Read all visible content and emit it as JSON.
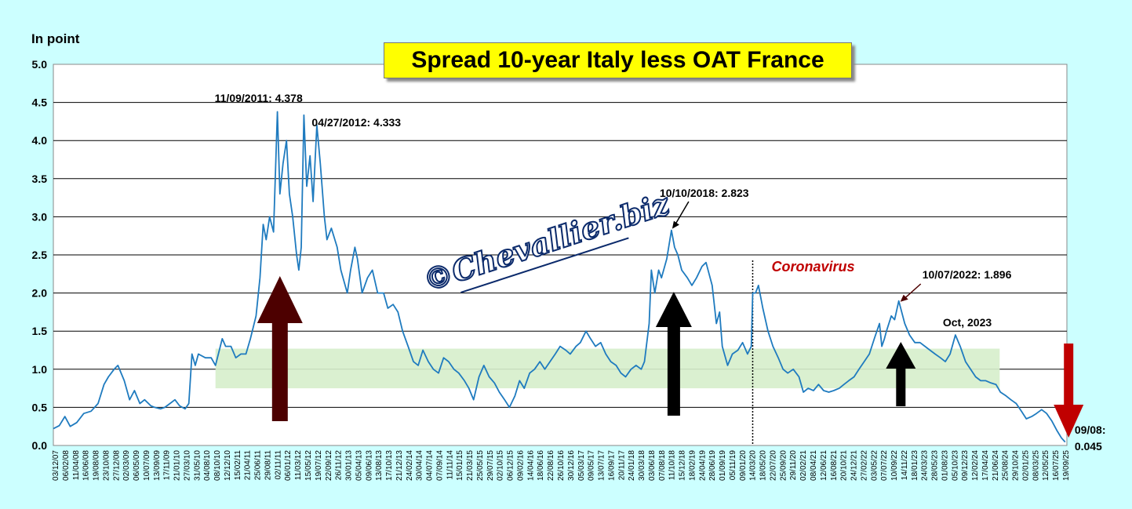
{
  "chart_data": {
    "type": "line",
    "title": "Spread 10-year Italy less OAT France",
    "ylabel": "In point",
    "ylim": [
      0,
      5
    ],
    "yticks": [
      "0.0",
      "0.5",
      "1.0",
      "1.5",
      "2.0",
      "2.5",
      "3.0",
      "3.5",
      "4.0",
      "4.5",
      "5.0"
    ],
    "grid": true,
    "x_tick_labels": [
      "03/12/07",
      "06/02/08",
      "11/04/08",
      "16/06/08",
      "19/08/08",
      "23/10/08",
      "27/12/08",
      "02/03/09",
      "06/05/09",
      "10/07/09",
      "13/09/09",
      "17/11/09",
      "21/01/10",
      "27/03/10",
      "31/05/10",
      "04/08/10",
      "08/10/10",
      "12/12/10",
      "15/02/11",
      "21/04/11",
      "25/06/11",
      "29/08/11",
      "02/11/11",
      "06/01/12",
      "11/03/12",
      "15/05/12",
      "19/07/12",
      "22/09/12",
      "26/11/12",
      "30/01/13",
      "05/04/13",
      "09/06/13",
      "13/08/13",
      "17/10/13",
      "21/12/13",
      "24/02/14",
      "30/04/14",
      "04/07/14",
      "07/09/14",
      "11/11/14",
      "15/01/15",
      "21/03/15",
      "25/05/15",
      "29/07/15",
      "02/10/15",
      "06/12/15",
      "09/02/16",
      "14/04/16",
      "18/06/16",
      "22/08/16",
      "26/10/16",
      "30/12/16",
      "05/03/17",
      "09/05/17",
      "13/07/17",
      "16/09/17",
      "20/11/17",
      "24/01/18",
      "30/03/18",
      "03/06/18",
      "07/08/18",
      "11/10/18",
      "15/12/18",
      "18/02/19",
      "24/04/19",
      "28/06/19",
      "01/09/19",
      "05/11/19",
      "09/01/20",
      "14/03/20",
      "18/05/20",
      "22/07/20",
      "25/09/20",
      "29/11/20",
      "02/02/21",
      "08/04/21",
      "12/06/21",
      "16/08/21",
      "20/10/21",
      "24/12/21",
      "27/02/22",
      "03/05/22",
      "07/07/22",
      "10/09/22",
      "14/11/22",
      "18/01/23",
      "24/03/23",
      "28/05/23",
      "01/08/23",
      "05/10/23",
      "09/12/23",
      "12/02/24",
      "17/04/24",
      "21/06/24",
      "25/08/24",
      "29/10/24",
      "02/01/25",
      "08/03/25",
      "12/05/25",
      "16/07/25",
      "19/09/25"
    ],
    "x_range": [
      "2007-12-03",
      "2025-09-19"
    ],
    "series": [
      {
        "color": "#1f7bbf",
        "points": [
          [
            "2007-12-03",
            0.22
          ],
          [
            "2008-01-10",
            0.26
          ],
          [
            "2008-02-15",
            0.38
          ],
          [
            "2008-03-20",
            0.25
          ],
          [
            "2008-05-01",
            0.3
          ],
          [
            "2008-06-15",
            0.42
          ],
          [
            "2008-08-01",
            0.45
          ],
          [
            "2008-09-15",
            0.55
          ],
          [
            "2008-10-23",
            0.8
          ],
          [
            "2008-11-20",
            0.9
          ],
          [
            "2008-12-27",
            1.0
          ],
          [
            "2009-01-20",
            1.05
          ],
          [
            "2009-03-02",
            0.85
          ],
          [
            "2009-04-05",
            0.6
          ],
          [
            "2009-05-06",
            0.72
          ],
          [
            "2009-06-10",
            0.55
          ],
          [
            "2009-07-10",
            0.6
          ],
          [
            "2009-08-20",
            0.52
          ],
          [
            "2009-09-13",
            0.5
          ],
          [
            "2009-10-20",
            0.48
          ],
          [
            "2009-11-17",
            0.5
          ],
          [
            "2009-12-20",
            0.55
          ],
          [
            "2010-01-21",
            0.6
          ],
          [
            "2010-02-20",
            0.52
          ],
          [
            "2010-03-27",
            0.48
          ],
          [
            "2010-04-20",
            0.55
          ],
          [
            "2010-05-10",
            1.2
          ],
          [
            "2010-05-31",
            1.05
          ],
          [
            "2010-06-20",
            1.2
          ],
          [
            "2010-08-04",
            1.15
          ],
          [
            "2010-09-10",
            1.15
          ],
          [
            "2010-10-08",
            1.05
          ],
          [
            "2010-11-20",
            1.4
          ],
          [
            "2010-12-12",
            1.3
          ],
          [
            "2011-01-15",
            1.3
          ],
          [
            "2011-02-15",
            1.15
          ],
          [
            "2011-03-20",
            1.2
          ],
          [
            "2011-04-21",
            1.2
          ],
          [
            "2011-05-20",
            1.4
          ],
          [
            "2011-06-25",
            1.7
          ],
          [
            "2011-07-20",
            2.2
          ],
          [
            "2011-08-10",
            2.9
          ],
          [
            "2011-08-29",
            2.7
          ],
          [
            "2011-09-20",
            3.0
          ],
          [
            "2011-10-15",
            2.8
          ],
          [
            "2011-11-09",
            4.378
          ],
          [
            "2011-11-25",
            3.3
          ],
          [
            "2011-12-15",
            3.7
          ],
          [
            "2012-01-06",
            4.0
          ],
          [
            "2012-01-25",
            3.3
          ],
          [
            "2012-02-15",
            3.0
          ],
          [
            "2012-03-11",
            2.5
          ],
          [
            "2012-03-25",
            2.3
          ],
          [
            "2012-04-10",
            2.6
          ],
          [
            "2012-04-27",
            4.333
          ],
          [
            "2012-05-15",
            3.4
          ],
          [
            "2012-06-05",
            3.8
          ],
          [
            "2012-06-25",
            3.2
          ],
          [
            "2012-07-19",
            4.2
          ],
          [
            "2012-08-10",
            3.7
          ],
          [
            "2012-09-05",
            3.0
          ],
          [
            "2012-09-22",
            2.7
          ],
          [
            "2012-10-20",
            2.85
          ],
          [
            "2012-11-26",
            2.6
          ],
          [
            "2012-12-20",
            2.3
          ],
          [
            "2013-01-30",
            2.0
          ],
          [
            "2013-02-20",
            2.3
          ],
          [
            "2013-03-20",
            2.6
          ],
          [
            "2013-04-05",
            2.45
          ],
          [
            "2013-05-05",
            2.0
          ],
          [
            "2013-06-09",
            2.2
          ],
          [
            "2013-07-10",
            2.3
          ],
          [
            "2013-08-13",
            2.0
          ],
          [
            "2013-09-20",
            2.0
          ],
          [
            "2013-10-17",
            1.8
          ],
          [
            "2013-11-20",
            1.85
          ],
          [
            "2013-12-21",
            1.75
          ],
          [
            "2014-01-20",
            1.5
          ],
          [
            "2014-02-24",
            1.3
          ],
          [
            "2014-03-30",
            1.1
          ],
          [
            "2014-04-30",
            1.05
          ],
          [
            "2014-05-30",
            1.25
          ],
          [
            "2014-07-04",
            1.1
          ],
          [
            "2014-08-05",
            1.0
          ],
          [
            "2014-09-07",
            0.95
          ],
          [
            "2014-10-10",
            1.15
          ],
          [
            "2014-11-11",
            1.1
          ],
          [
            "2014-12-15",
            1.0
          ],
          [
            "2015-01-15",
            0.95
          ],
          [
            "2015-02-20",
            0.85
          ],
          [
            "2015-03-21",
            0.75
          ],
          [
            "2015-04-20",
            0.6
          ],
          [
            "2015-05-25",
            0.9
          ],
          [
            "2015-06-25",
            1.05
          ],
          [
            "2015-07-29",
            0.9
          ],
          [
            "2015-09-01",
            0.82
          ],
          [
            "2015-10-02",
            0.7
          ],
          [
            "2015-11-05",
            0.6
          ],
          [
            "2015-12-06",
            0.5
          ],
          [
            "2016-01-10",
            0.65
          ],
          [
            "2016-02-09",
            0.85
          ],
          [
            "2016-03-10",
            0.75
          ],
          [
            "2016-04-14",
            0.95
          ],
          [
            "2016-05-15",
            1.0
          ],
          [
            "2016-06-18",
            1.1
          ],
          [
            "2016-07-20",
            1.0
          ],
          [
            "2016-08-22",
            1.1
          ],
          [
            "2016-09-25",
            1.2
          ],
          [
            "2016-10-26",
            1.3
          ],
          [
            "2016-12-01",
            1.25
          ],
          [
            "2016-12-30",
            1.2
          ],
          [
            "2017-02-05",
            1.3
          ],
          [
            "2017-03-05",
            1.35
          ],
          [
            "2017-04-10",
            1.5
          ],
          [
            "2017-05-09",
            1.4
          ],
          [
            "2017-06-10",
            1.3
          ],
          [
            "2017-07-13",
            1.35
          ],
          [
            "2017-08-15",
            1.2
          ],
          [
            "2017-09-16",
            1.1
          ],
          [
            "2017-10-20",
            1.05
          ],
          [
            "2017-11-20",
            0.95
          ],
          [
            "2017-12-20",
            0.9
          ],
          [
            "2018-01-24",
            1.0
          ],
          [
            "2018-02-25",
            1.05
          ],
          [
            "2018-03-30",
            1.0
          ],
          [
            "2018-04-20",
            1.1
          ],
          [
            "2018-05-20",
            1.6
          ],
          [
            "2018-06-03",
            2.3
          ],
          [
            "2018-06-25",
            2.0
          ],
          [
            "2018-07-20",
            2.3
          ],
          [
            "2018-08-07",
            2.2
          ],
          [
            "2018-09-10",
            2.45
          ],
          [
            "2018-10-10",
            2.823
          ],
          [
            "2018-10-30",
            2.6
          ],
          [
            "2018-11-20",
            2.5
          ],
          [
            "2018-12-15",
            2.3
          ],
          [
            "2019-01-20",
            2.2
          ],
          [
            "2019-02-18",
            2.1
          ],
          [
            "2019-03-20",
            2.2
          ],
          [
            "2019-04-24",
            2.35
          ],
          [
            "2019-05-20",
            2.4
          ],
          [
            "2019-06-28",
            2.1
          ],
          [
            "2019-07-25",
            1.6
          ],
          [
            "2019-08-15",
            1.75
          ],
          [
            "2019-09-01",
            1.3
          ],
          [
            "2019-10-05",
            1.05
          ],
          [
            "2019-11-05",
            1.2
          ],
          [
            "2019-12-10",
            1.25
          ],
          [
            "2020-01-09",
            1.35
          ],
          [
            "2020-02-10",
            1.2
          ],
          [
            "2020-03-05",
            1.3
          ],
          [
            "2020-03-14",
            2.0
          ],
          [
            "2020-04-01",
            2.0
          ],
          [
            "2020-04-20",
            2.1
          ],
          [
            "2020-05-18",
            1.8
          ],
          [
            "2020-06-20",
            1.5
          ],
          [
            "2020-07-22",
            1.3
          ],
          [
            "2020-08-25",
            1.15
          ],
          [
            "2020-09-25",
            1.0
          ],
          [
            "2020-10-25",
            0.95
          ],
          [
            "2020-11-29",
            1.0
          ],
          [
            "2021-01-05",
            0.9
          ],
          [
            "2021-02-02",
            0.7
          ],
          [
            "2021-03-05",
            0.75
          ],
          [
            "2021-04-08",
            0.72
          ],
          [
            "2021-05-10",
            0.8
          ],
          [
            "2021-06-12",
            0.72
          ],
          [
            "2021-07-15",
            0.7
          ],
          [
            "2021-08-16",
            0.72
          ],
          [
            "2021-09-20",
            0.75
          ],
          [
            "2021-10-20",
            0.8
          ],
          [
            "2021-11-20",
            0.85
          ],
          [
            "2021-12-24",
            0.9
          ],
          [
            "2022-01-25",
            1.0
          ],
          [
            "2022-02-27",
            1.1
          ],
          [
            "2022-04-01",
            1.2
          ],
          [
            "2022-05-03",
            1.4
          ],
          [
            "2022-06-05",
            1.6
          ],
          [
            "2022-06-20",
            1.3
          ],
          [
            "2022-07-07",
            1.4
          ],
          [
            "2022-07-20",
            1.5
          ],
          [
            "2022-08-20",
            1.7
          ],
          [
            "2022-09-10",
            1.65
          ],
          [
            "2022-10-07",
            1.896
          ],
          [
            "2022-11-14",
            1.6
          ],
          [
            "2022-12-15",
            1.45
          ],
          [
            "2023-01-18",
            1.35
          ],
          [
            "2023-02-20",
            1.35
          ],
          [
            "2023-03-24",
            1.3
          ],
          [
            "2023-04-25",
            1.25
          ],
          [
            "2023-05-28",
            1.2
          ],
          [
            "2023-07-01",
            1.15
          ],
          [
            "2023-08-01",
            1.1
          ],
          [
            "2023-09-01",
            1.2
          ],
          [
            "2023-10-05",
            1.45
          ],
          [
            "2023-11-05",
            1.3
          ],
          [
            "2023-12-09",
            1.1
          ],
          [
            "2024-01-10",
            1.0
          ],
          [
            "2024-02-12",
            0.9
          ],
          [
            "2024-03-15",
            0.85
          ],
          [
            "2024-04-17",
            0.85
          ],
          [
            "2024-05-20",
            0.82
          ],
          [
            "2024-06-21",
            0.8
          ],
          [
            "2024-07-20",
            0.7
          ],
          [
            "2024-08-25",
            0.65
          ],
          [
            "2024-09-25",
            0.6
          ],
          [
            "2024-10-29",
            0.55
          ],
          [
            "2024-12-01",
            0.45
          ],
          [
            "2025-01-02",
            0.35
          ],
          [
            "2025-02-05",
            0.38
          ],
          [
            "2025-03-08",
            0.42
          ],
          [
            "2025-04-10",
            0.47
          ],
          [
            "2025-05-12",
            0.42
          ],
          [
            "2025-06-15",
            0.32
          ],
          [
            "2025-07-16",
            0.2
          ],
          [
            "2025-08-15",
            0.1
          ],
          [
            "2025-09-08",
            0.045
          ]
        ]
      }
    ],
    "reference_band": {
      "y_from": 0.75,
      "y_to": 1.27,
      "x_from": "2010-10-08",
      "x_to": "2024-07-15",
      "color": "#d6eecb"
    },
    "event_line": {
      "x": "2020-03-14",
      "label": "Coronavirus"
    },
    "annotations": [
      {
        "text": "11/09/2011: 4.378",
        "x": "2011-11-09",
        "y": 4.378
      },
      {
        "text": "04/27/2012: 4.333",
        "x": "2012-04-27",
        "y": 4.333
      },
      {
        "text": "10/10/2018: 2.823",
        "x": "2018-10-10",
        "y": 2.823
      },
      {
        "text": "10/07/2022: 1.896",
        "x": "2022-10-07",
        "y": 1.896
      },
      {
        "text": "Oct, 2023",
        "x": "2023-10-05",
        "y": 1.45
      },
      {
        "text": "09/08:",
        "x": "2025-09-08",
        "y": 0.045
      },
      {
        "text": "0.045",
        "x": "2025-09-08",
        "y": 0.045
      }
    ],
    "arrows": [
      {
        "direction": "up",
        "color": "#4d0000",
        "x": "2011-11-25"
      },
      {
        "direction": "up",
        "color": "#000000",
        "x": "2018-10-25"
      },
      {
        "direction": "up",
        "color": "#000000",
        "x": "2022-10-20"
      },
      {
        "direction": "down",
        "color": "#c00000",
        "x": "2025-09-10"
      }
    ],
    "watermark": "©Chevallier.biz"
  }
}
